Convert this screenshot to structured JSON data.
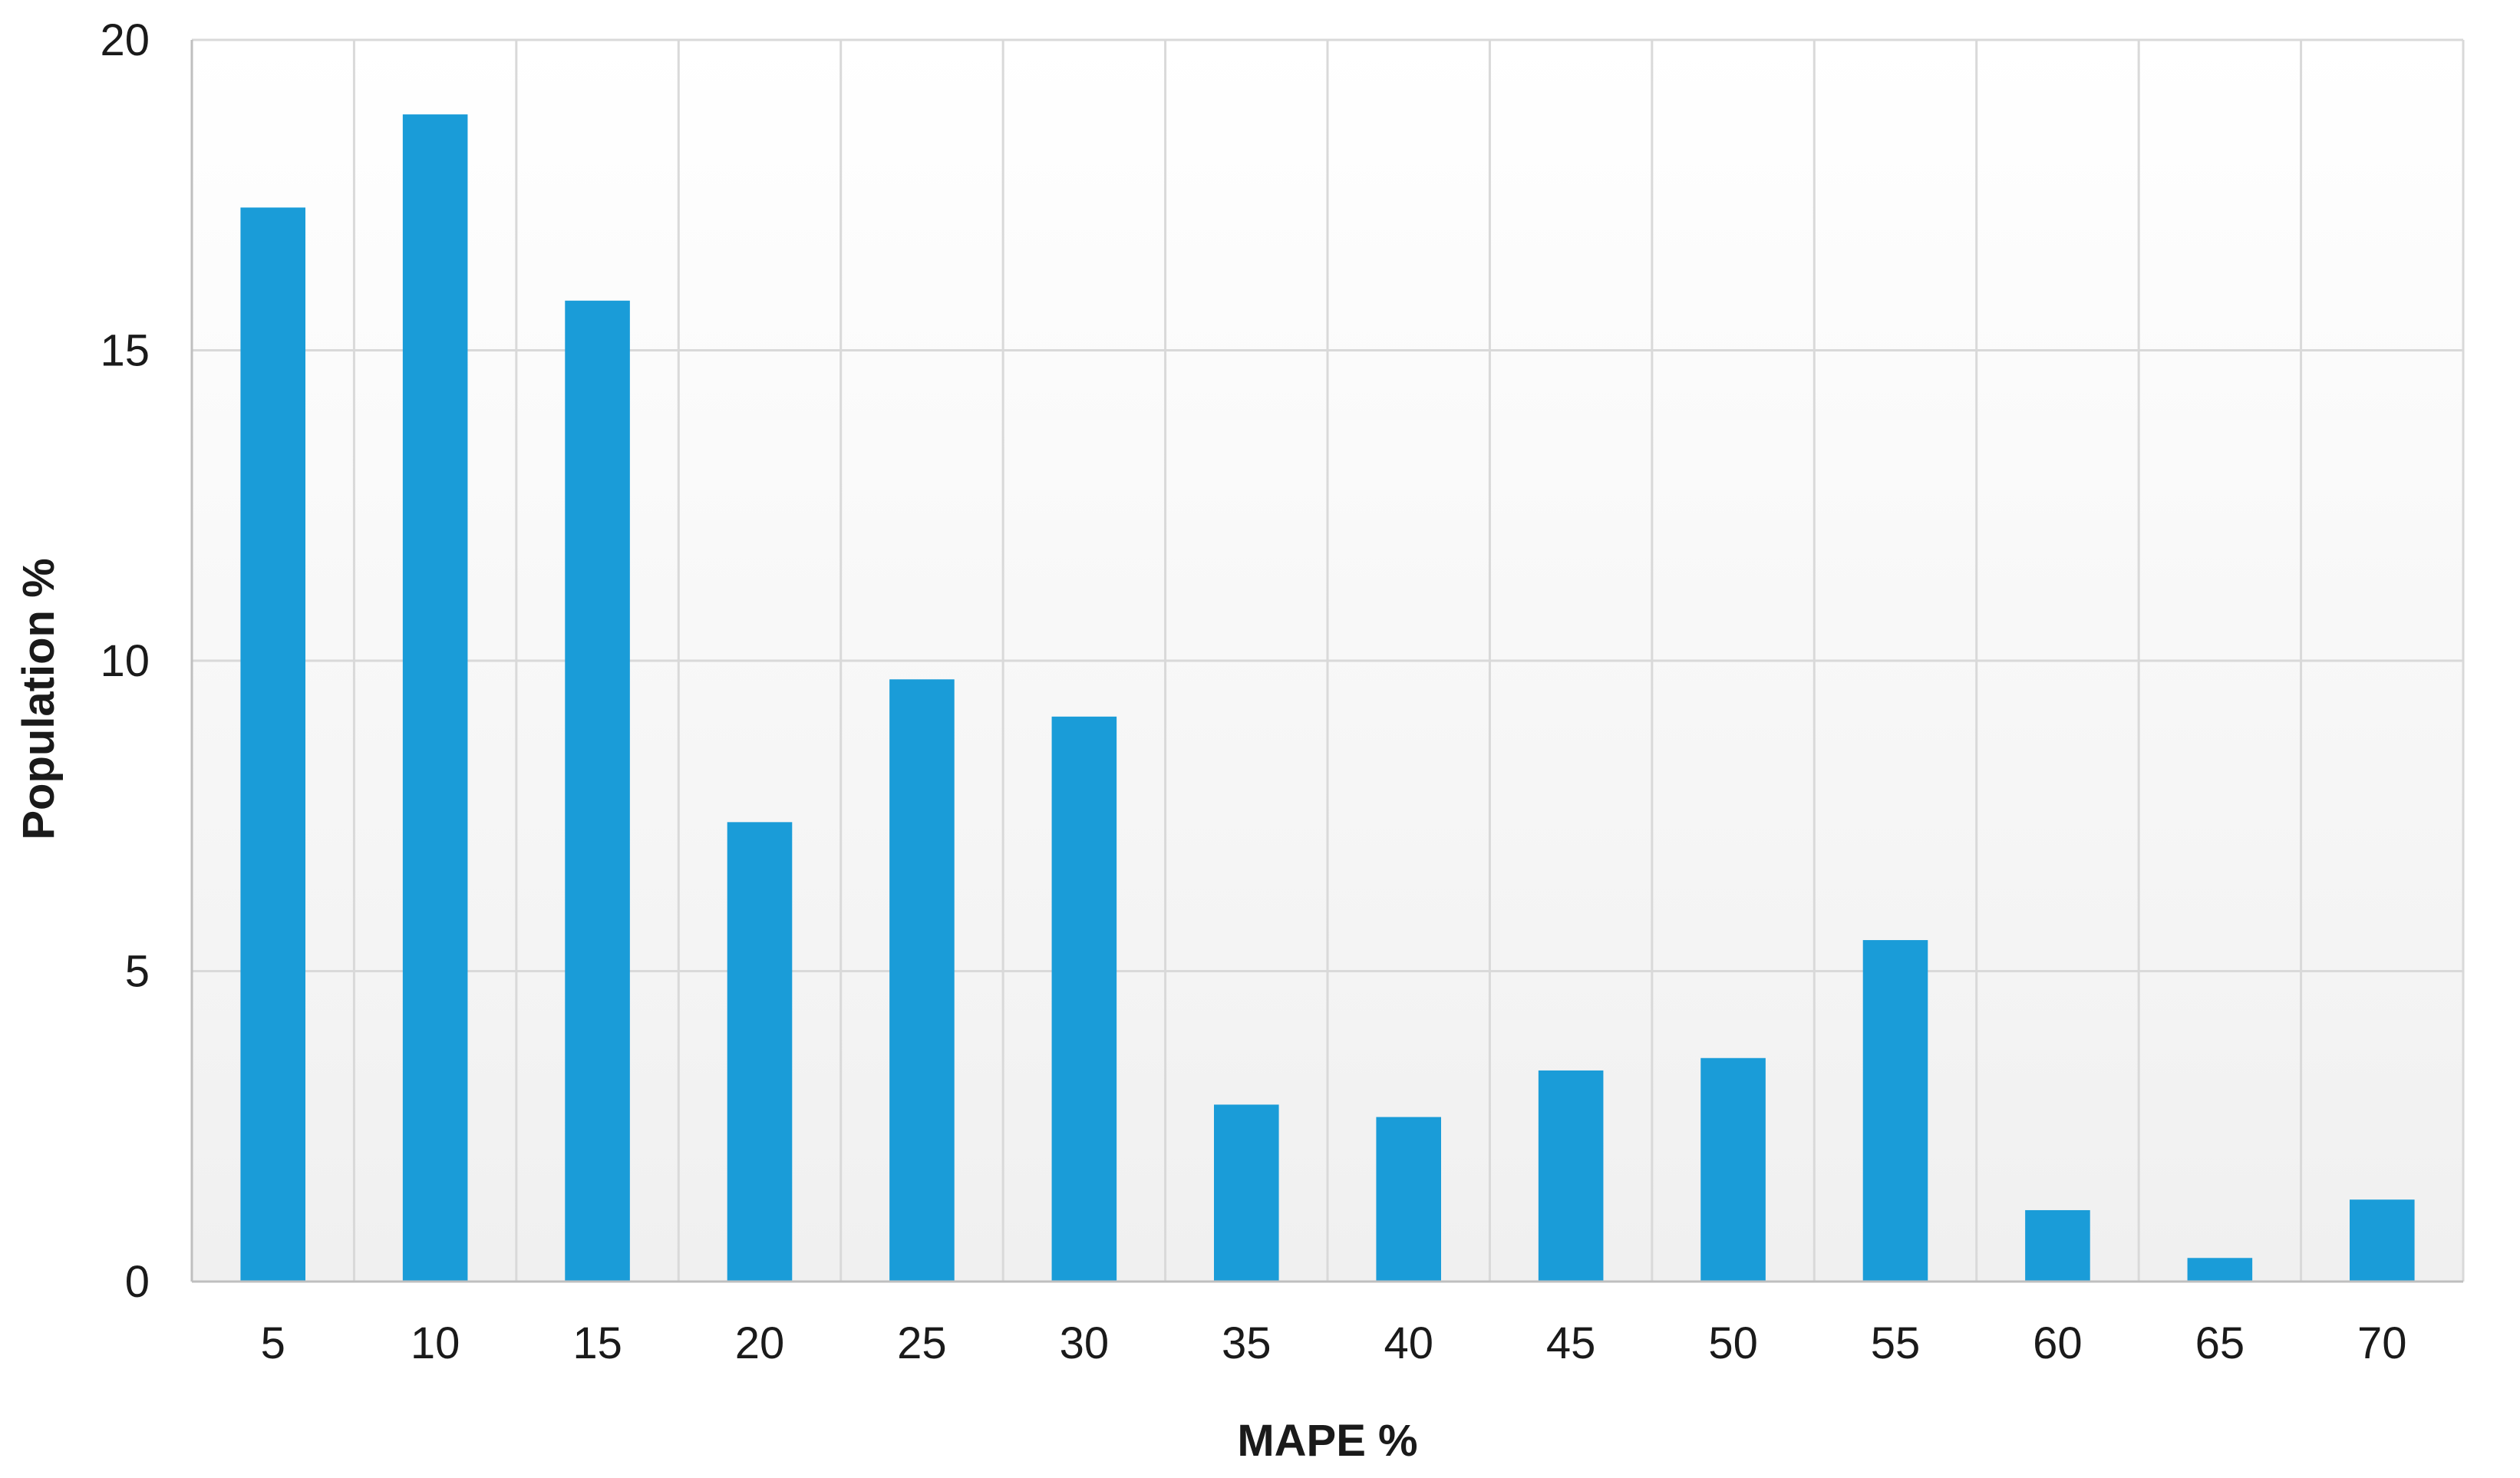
{
  "chart_data": {
    "type": "bar",
    "title": "",
    "xlabel": "MAPE %",
    "ylabel": "Population %",
    "categories": [
      "5",
      "10",
      "15",
      "20",
      "25",
      "30",
      "35",
      "40",
      "45",
      "50",
      "55",
      "60",
      "65",
      "70"
    ],
    "values": [
      17.3,
      18.8,
      15.8,
      7.4,
      9.7,
      9.1,
      2.85,
      2.65,
      3.4,
      3.6,
      5.5,
      1.15,
      0.38,
      1.32
    ],
    "ylim": [
      0,
      20
    ],
    "yticks": [
      "0",
      "5",
      "10",
      "15",
      "20"
    ],
    "grid": true,
    "legend": "none",
    "colors": {
      "bar": "#1a9cd8",
      "grid": "#d9d9d9",
      "axis": "#bfbfbf",
      "plot_bg_top": "#ffffff",
      "plot_bg_bottom": "#f0f0f0"
    }
  }
}
